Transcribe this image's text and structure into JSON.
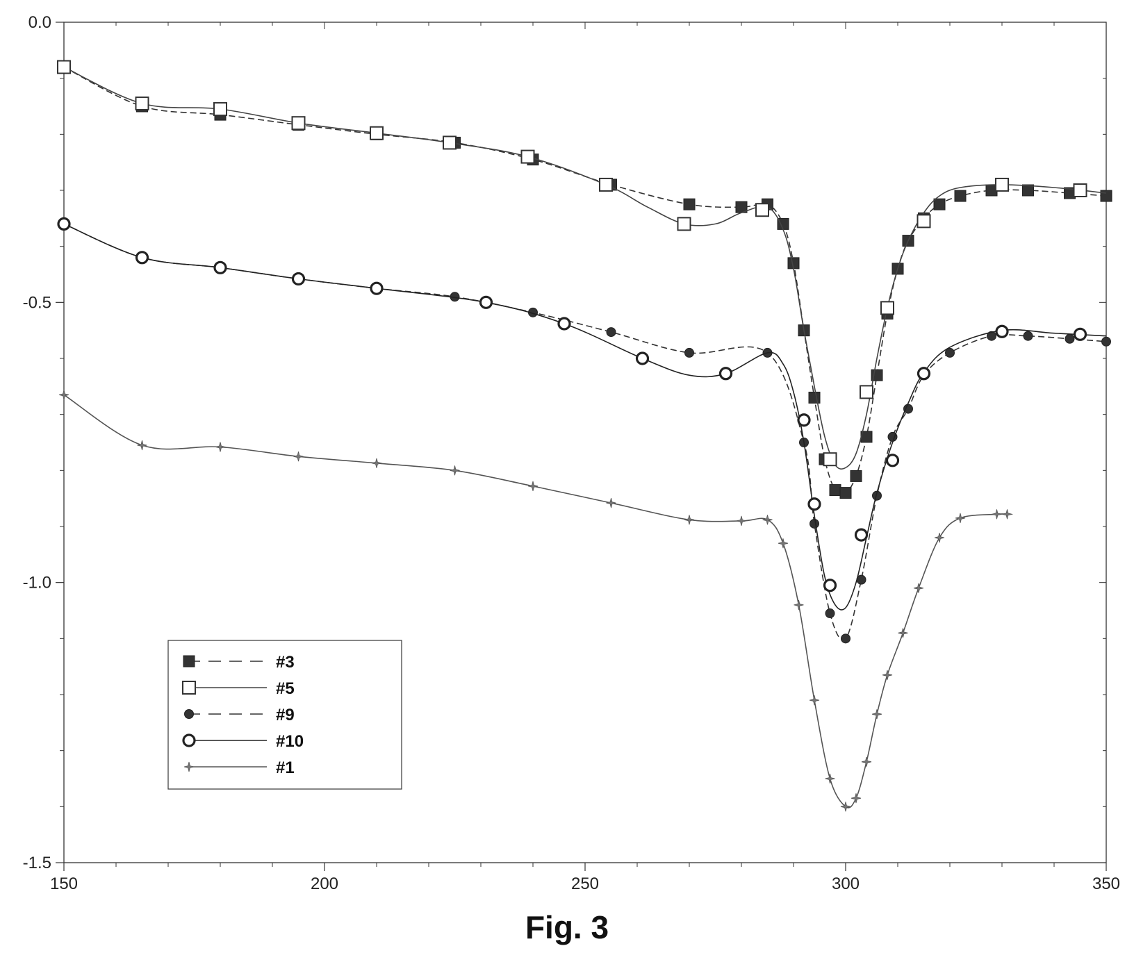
{
  "caption": "Fig. 3",
  "chart_data": {
    "type": "line",
    "title": "",
    "xlabel": "",
    "ylabel": "",
    "xlim": [
      150,
      350
    ],
    "ylim": [
      -1.5,
      0.0
    ],
    "x_ticks": [
      150,
      200,
      250,
      300,
      350
    ],
    "x_tick_labels": [
      "150",
      "200",
      "250",
      "300",
      "350"
    ],
    "y_ticks": [
      0.0,
      -0.5,
      -1.0,
      -1.5
    ],
    "y_tick_labels": [
      "0.0",
      "-0.5",
      "-1.0",
      "-1.5"
    ],
    "grid": false,
    "legend_position": "bottom-left",
    "series": [
      {
        "name": "#3",
        "line": "dashed",
        "marker": "filled-square",
        "color": "#333333",
        "x": [
          150,
          165,
          180,
          195,
          210,
          225,
          240,
          255,
          270,
          280,
          285,
          288,
          290,
          292,
          294,
          296,
          298,
          300,
          302,
          304,
          306,
          308,
          310,
          312,
          315,
          318,
          322,
          328,
          335,
          343,
          350
        ],
        "y": [
          -0.08,
          -0.15,
          -0.165,
          -0.183,
          -0.2,
          -0.215,
          -0.245,
          -0.29,
          -0.325,
          -0.33,
          -0.325,
          -0.36,
          -0.43,
          -0.55,
          -0.67,
          -0.78,
          -0.835,
          -0.84,
          -0.81,
          -0.74,
          -0.63,
          -0.52,
          -0.44,
          -0.39,
          -0.35,
          -0.325,
          -0.31,
          -0.3,
          -0.3,
          -0.305,
          -0.31
        ]
      },
      {
        "name": "#5",
        "line": "solid",
        "marker": "open-square",
        "color": "#444444",
        "markers_x": [
          150,
          165,
          180,
          195,
          210,
          224,
          239,
          254,
          269,
          284,
          297,
          304,
          308,
          315,
          330,
          345
        ],
        "markers_y": [
          -0.08,
          -0.145,
          -0.155,
          -0.18,
          -0.198,
          -0.215,
          -0.24,
          -0.29,
          -0.36,
          -0.335,
          -0.78,
          -0.66,
          -0.51,
          -0.355,
          -0.29,
          -0.3
        ],
        "x": [
          150,
          165,
          180,
          195,
          210,
          224,
          239,
          254,
          262,
          269,
          275,
          280,
          285,
          288,
          290,
          292,
          294,
          296,
          298,
          300,
          302,
          304,
          306,
          308,
          310,
          312,
          315,
          318,
          322,
          330,
          340,
          350
        ],
        "y": [
          -0.08,
          -0.145,
          -0.155,
          -0.18,
          -0.198,
          -0.215,
          -0.24,
          -0.29,
          -0.33,
          -0.36,
          -0.36,
          -0.34,
          -0.33,
          -0.37,
          -0.44,
          -0.55,
          -0.65,
          -0.74,
          -0.79,
          -0.795,
          -0.77,
          -0.7,
          -0.6,
          -0.51,
          -0.44,
          -0.39,
          -0.34,
          -0.31,
          -0.295,
          -0.29,
          -0.295,
          -0.305
        ]
      },
      {
        "name": "#9",
        "line": "dashed",
        "marker": "filled-circle",
        "color": "#333333",
        "x": [
          150,
          165,
          180,
          195,
          210,
          225,
          240,
          255,
          270,
          285,
          292,
          294,
          297,
          300,
          303,
          306,
          309,
          312,
          315,
          320,
          328,
          335,
          343,
          350
        ],
        "y": [
          -0.36,
          -0.42,
          -0.438,
          -0.458,
          -0.475,
          -0.49,
          -0.518,
          -0.553,
          -0.59,
          -0.59,
          -0.75,
          -0.895,
          -1.055,
          -1.1,
          -0.995,
          -0.845,
          -0.74,
          -0.69,
          -0.63,
          -0.59,
          -0.56,
          -0.56,
          -0.565,
          -0.57
        ]
      },
      {
        "name": "#10",
        "line": "solid",
        "marker": "open-circle",
        "color": "#222222",
        "markers_x": [
          150,
          165,
          180,
          195,
          210,
          231,
          246,
          261,
          277,
          292,
          294,
          297,
          303,
          309,
          315,
          330,
          345
        ],
        "markers_y": [
          -0.36,
          -0.42,
          -0.438,
          -0.458,
          -0.475,
          -0.5,
          -0.538,
          -0.6,
          -0.627,
          -0.71,
          -0.86,
          -1.005,
          -0.915,
          -0.782,
          -0.627,
          -0.552,
          -0.557
        ],
        "x": [
          150,
          165,
          180,
          195,
          210,
          231,
          246,
          261,
          270,
          277,
          285,
          288,
          290,
          292,
          294,
          296,
          298,
          300,
          302,
          304,
          306,
          309,
          312,
          315,
          320,
          330,
          340,
          350
        ],
        "y": [
          -0.36,
          -0.42,
          -0.438,
          -0.458,
          -0.475,
          -0.5,
          -0.538,
          -0.6,
          -0.63,
          -0.627,
          -0.59,
          -0.61,
          -0.66,
          -0.75,
          -0.88,
          -0.99,
          -1.04,
          -1.045,
          -1.0,
          -0.92,
          -0.84,
          -0.75,
          -0.68,
          -0.625,
          -0.58,
          -0.55,
          -0.555,
          -0.56
        ]
      },
      {
        "name": "#1",
        "line": "solid",
        "marker": "star",
        "color": "#555555",
        "x": [
          150,
          165,
          180,
          195,
          210,
          225,
          240,
          255,
          270,
          280,
          285,
          288,
          291,
          294,
          297,
          300,
          302,
          304,
          306,
          308,
          311,
          314,
          318,
          322,
          329,
          331
        ],
        "y": [
          -0.665,
          -0.755,
          -0.758,
          -0.775,
          -0.787,
          -0.8,
          -0.828,
          -0.858,
          -0.888,
          -0.89,
          -0.888,
          -0.93,
          -1.04,
          -1.21,
          -1.35,
          -1.4,
          -1.385,
          -1.32,
          -1.235,
          -1.165,
          -1.09,
          -1.01,
          -0.92,
          -0.885,
          -0.878,
          -0.878
        ]
      }
    ]
  }
}
